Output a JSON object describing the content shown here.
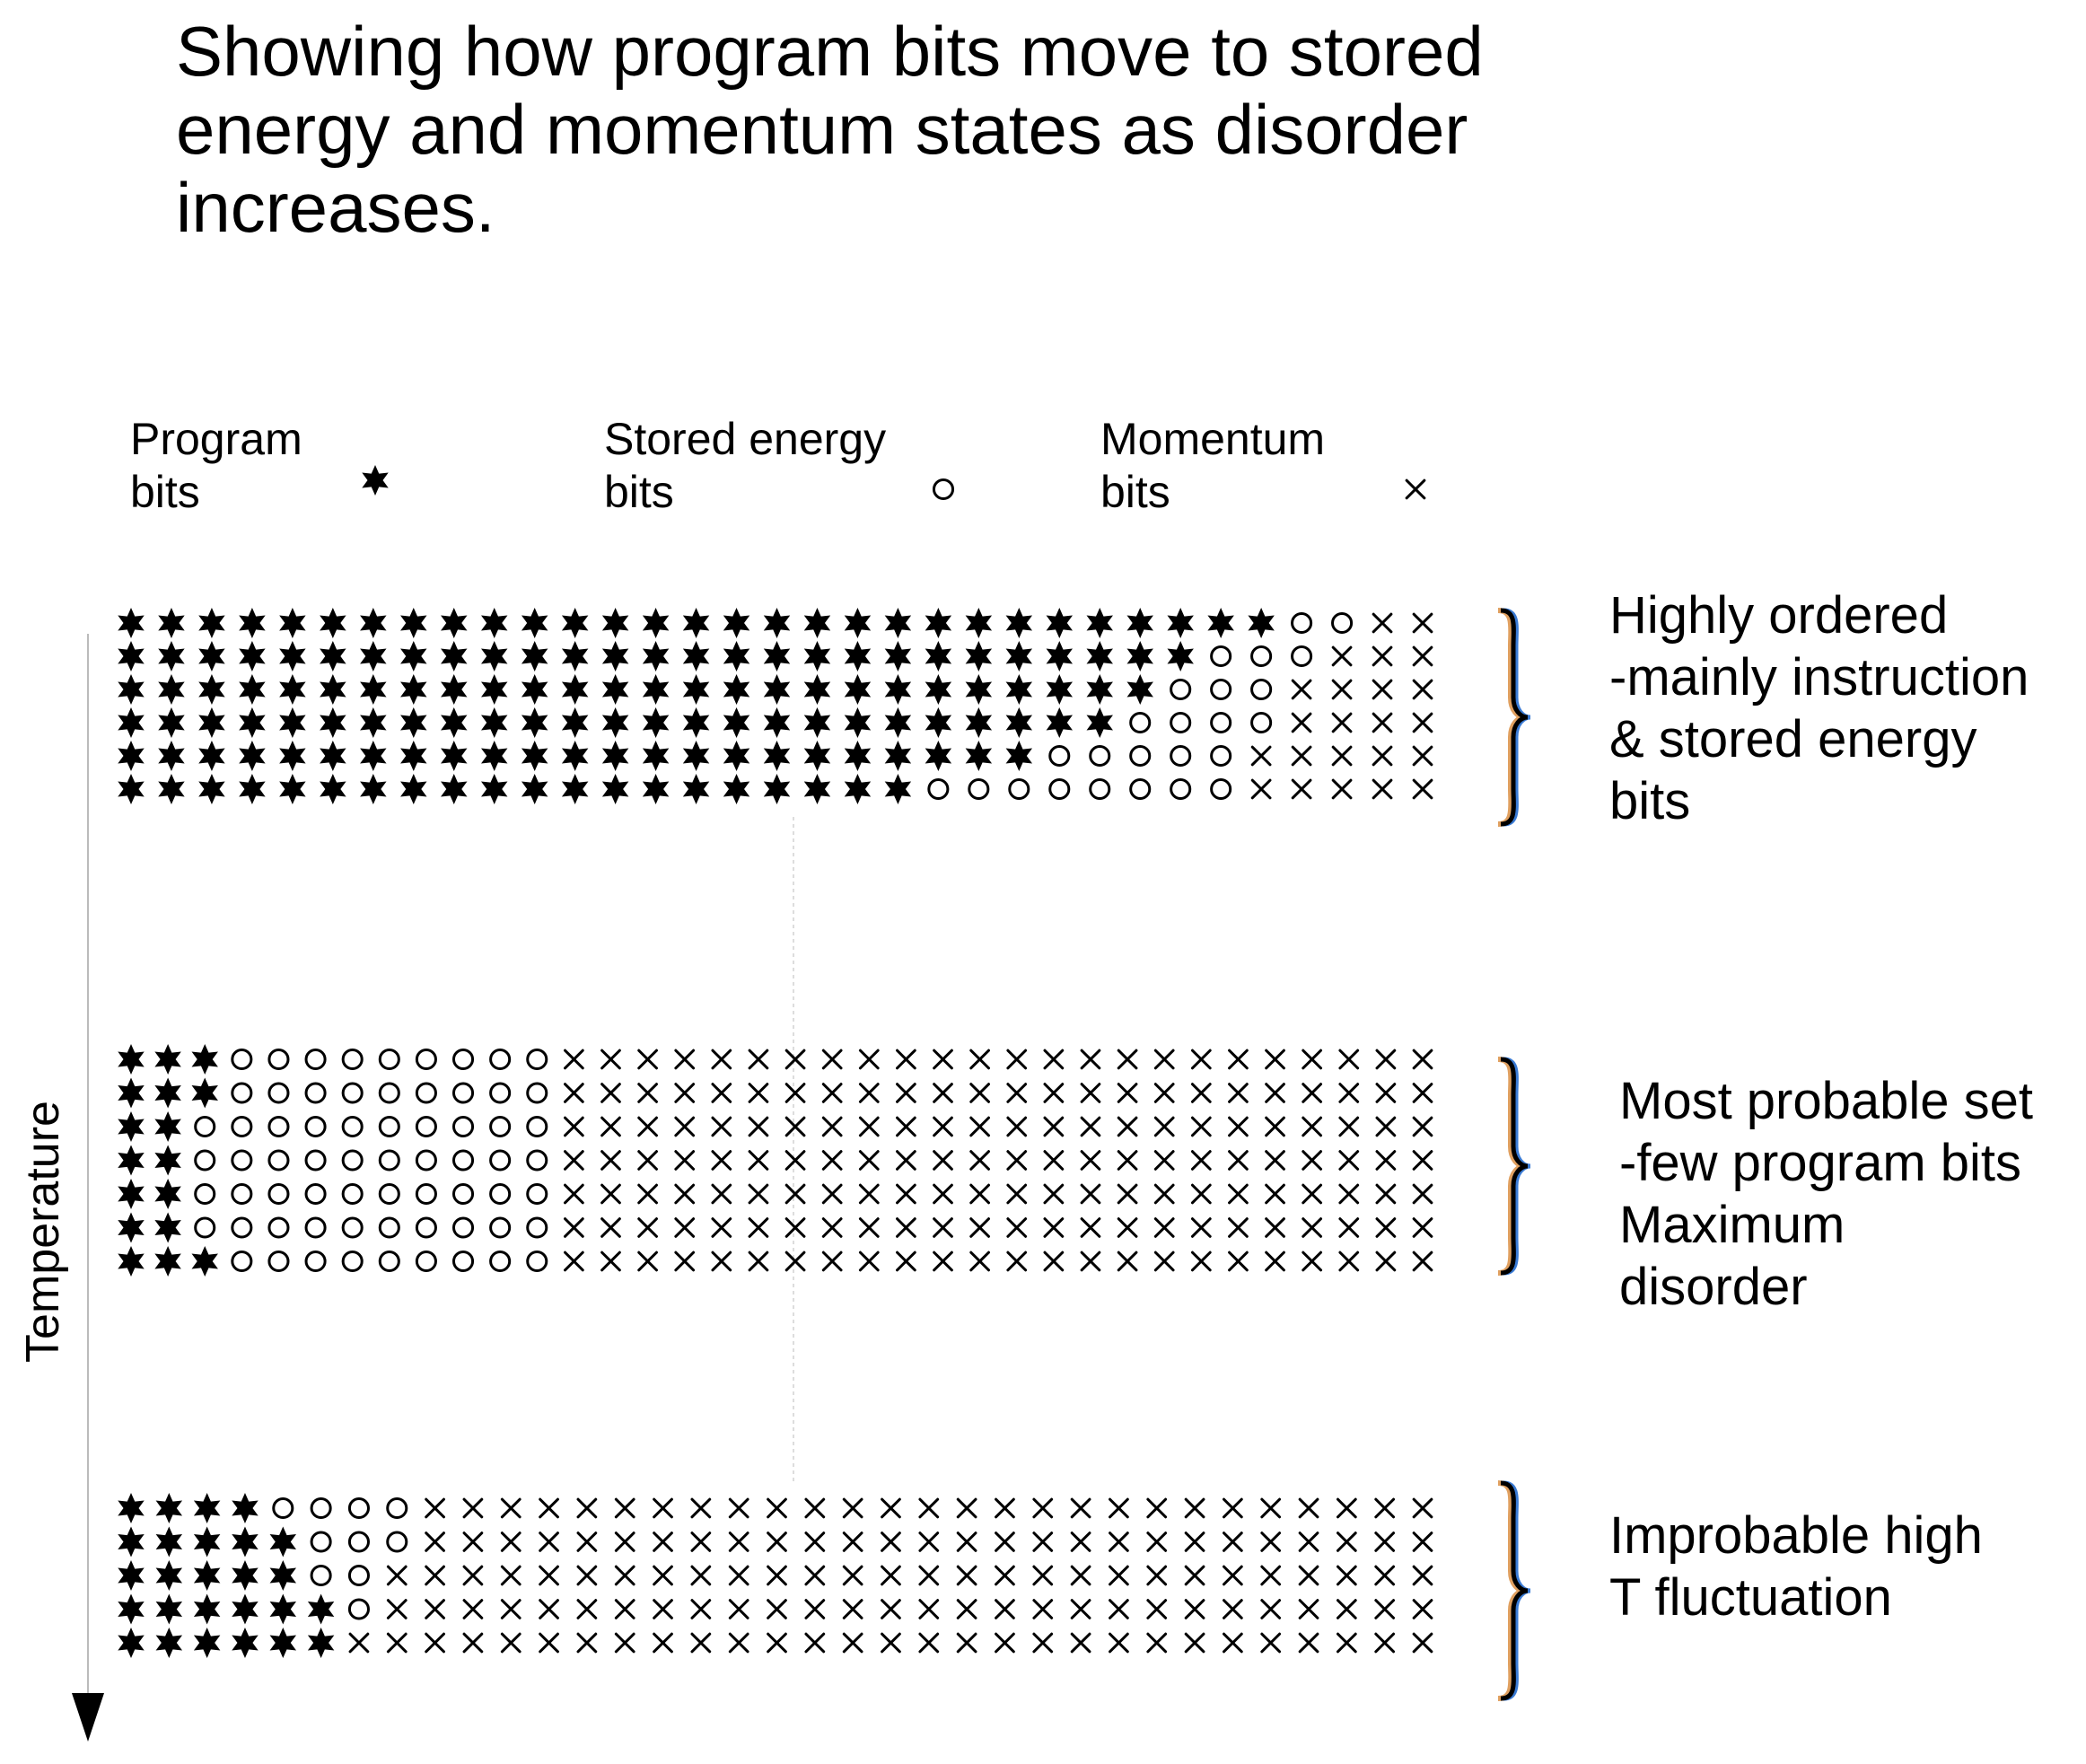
{
  "title": "Showing how program bits move to stored energy and momentum states as disorder increases.",
  "legend": [
    {
      "key": "program",
      "line1": "Program",
      "line2": "bits",
      "icon": "six-point-star-icon"
    },
    {
      "key": "energy",
      "line1": "Stored energy",
      "line2": "bits",
      "icon": "circle-icon"
    },
    {
      "key": "momentum",
      "line1": "Momentum",
      "line2": "bits",
      "icon": "cross-icon"
    }
  ],
  "axis": {
    "label": "Temperature",
    "icon": "down-arrow-icon"
  },
  "panels": [
    {
      "key": "ordered",
      "description": [
        "Highly ordered",
        "-mainly instruction",
        "& stored energy",
        "bits"
      ],
      "rows": [
        {
          "program": 29,
          "energy": 2,
          "momentum": 2
        },
        {
          "program": 27,
          "energy": 3,
          "momentum": 3
        },
        {
          "program": 26,
          "energy": 3,
          "momentum": 4
        },
        {
          "program": 25,
          "energy": 4,
          "momentum": 4
        },
        {
          "program": 23,
          "energy": 5,
          "momentum": 5
        },
        {
          "program": 20,
          "energy": 8,
          "momentum": 5
        }
      ]
    },
    {
      "key": "probable",
      "description": [
        "Most probable set",
        "-few program bits",
        "Maximum",
        "disorder"
      ],
      "rows": [
        {
          "program": 3,
          "energy": 9,
          "momentum": 24
        },
        {
          "program": 3,
          "energy": 9,
          "momentum": 24
        },
        {
          "program": 2,
          "energy": 10,
          "momentum": 24
        },
        {
          "program": 2,
          "energy": 10,
          "momentum": 24
        },
        {
          "program": 2,
          "energy": 10,
          "momentum": 24
        },
        {
          "program": 2,
          "energy": 10,
          "momentum": 24
        },
        {
          "program": 3,
          "energy": 9,
          "momentum": 24
        }
      ]
    },
    {
      "key": "fluctuation",
      "description": [
        "Improbable high",
        "T fluctuation"
      ],
      "rows": [
        {
          "program": 4,
          "energy": 4,
          "momentum": 27
        },
        {
          "program": 5,
          "energy": 3,
          "momentum": 27
        },
        {
          "program": 5,
          "energy": 2,
          "momentum": 28
        },
        {
          "program": 6,
          "energy": 1,
          "momentum": 28
        },
        {
          "program": 6,
          "energy": 0,
          "momentum": 29
        }
      ]
    }
  ],
  "colors": {
    "ink": "#000000",
    "axis": "#bbbbbb",
    "bracket_shadow_blue": "#3a7bd5",
    "bracket_shadow_orange": "#e0a060"
  }
}
